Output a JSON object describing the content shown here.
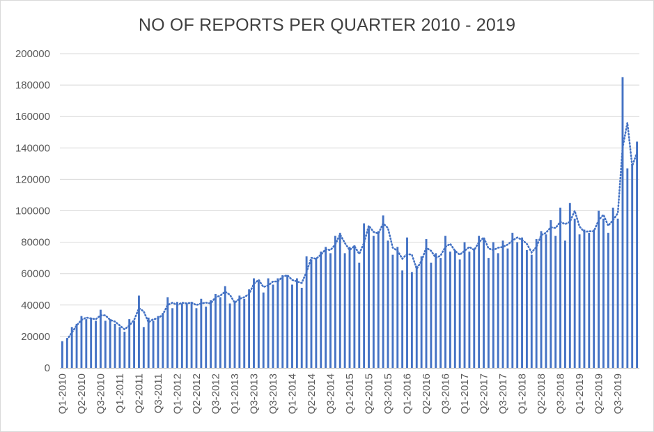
{
  "chart_data": {
    "type": "bar",
    "title": "NO OF REPORTS PER QUARTER 2010 - 2019",
    "xlabel": "",
    "ylabel": "",
    "ylim": [
      0,
      200000
    ],
    "y_ticks": [
      "0",
      "20000",
      "40000",
      "60000",
      "80000",
      "100000",
      "120000",
      "140000",
      "160000",
      "180000",
      "200000"
    ],
    "x_tick_labels": [
      "Q1-2010",
      "Q2-2010",
      "Q3-2010",
      "Q1-2011",
      "Q2-2011",
      "Q3-2011",
      "Q1-2012",
      "Q2-2012",
      "Q3-2012",
      "Q1-2013",
      "Q3-2013",
      "Q3-2013",
      "Q1-2014",
      "Q2-2014",
      "Q3-2014",
      "Q1-2015",
      "Q2-2015",
      "Q3-2015",
      "Q1-2016",
      "Q2-2016",
      "Q3-2016",
      "Q1-2017",
      "Q2-2017",
      "Q3-2017",
      "Q1-2018",
      "Q2-2018",
      "Q3-2018",
      "Q1-2019",
      "Q2-2019",
      "Q3-2019"
    ],
    "grid": true,
    "legend": "none",
    "bar_color": "#4472c4",
    "trendline": {
      "style": "dotted",
      "color": "#4472c4",
      "type": "moving-average"
    },
    "values": [
      17000,
      19000,
      26000,
      28000,
      33000,
      31000,
      32000,
      30000,
      37000,
      30000,
      31000,
      28000,
      26000,
      23000,
      31000,
      30000,
      46000,
      26000,
      32000,
      30000,
      33000,
      35000,
      45000,
      38000,
      42000,
      41000,
      41000,
      42000,
      38000,
      44000,
      39000,
      43000,
      47000,
      45000,
      52000,
      41000,
      42000,
      46000,
      44000,
      50000,
      57000,
      55000,
      48000,
      57000,
      53000,
      57000,
      59000,
      59000,
      53000,
      57000,
      51000,
      71000,
      69000,
      70000,
      74000,
      77000,
      73000,
      84000,
      86000,
      73000,
      77000,
      78000,
      67000,
      92000,
      89000,
      84000,
      87000,
      97000,
      81000,
      72000,
      77000,
      62000,
      83000,
      61000,
      65000,
      71000,
      82000,
      67000,
      73000,
      70000,
      84000,
      74000,
      75000,
      69000,
      80000,
      74000,
      76000,
      84000,
      82000,
      70000,
      80000,
      73000,
      81000,
      76000,
      86000,
      80000,
      83000,
      75000,
      72000,
      82000,
      87000,
      85000,
      94000,
      84000,
      102000,
      81000,
      105000,
      95000,
      85000,
      88000,
      86000,
      88000,
      100000,
      95000,
      86000,
      102000,
      95000,
      185000,
      127000,
      130000,
      144000
    ]
  }
}
